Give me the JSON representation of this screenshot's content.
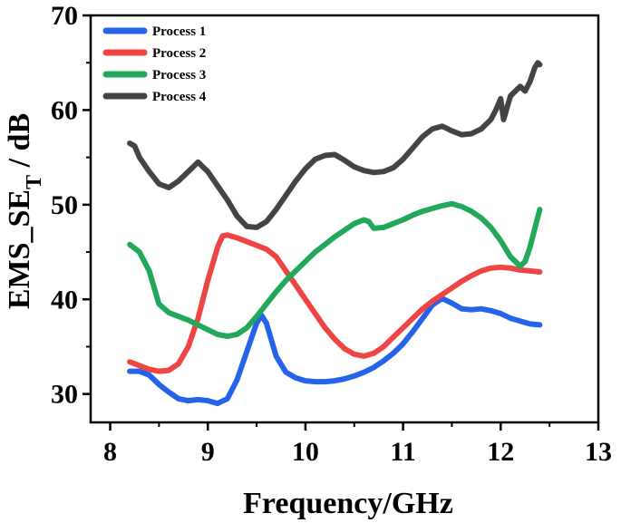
{
  "chart_data": {
    "type": "line",
    "title": "",
    "xlabel": "Frequency/GHz",
    "ylabel": {
      "main": "EMS_SE",
      "subscript": "T",
      "suffix": " / dB"
    },
    "xlim": [
      7.8,
      13
    ],
    "ylim": [
      27,
      70
    ],
    "x_ticks": [
      8,
      9,
      10,
      11,
      12,
      13
    ],
    "y_ticks": [
      30,
      40,
      50,
      60,
      70
    ],
    "grid": false,
    "legend_position": "top-left",
    "series": [
      {
        "name": "Process 1",
        "color": "#2563eb",
        "points": [
          [
            8.2,
            32.4
          ],
          [
            8.3,
            32.4
          ],
          [
            8.4,
            32.0
          ],
          [
            8.5,
            31.0
          ],
          [
            8.6,
            30.2
          ],
          [
            8.7,
            29.5
          ],
          [
            8.8,
            29.3
          ],
          [
            8.9,
            29.4
          ],
          [
            9.0,
            29.3
          ],
          [
            9.1,
            29.0
          ],
          [
            9.2,
            29.5
          ],
          [
            9.3,
            31.5
          ],
          [
            9.4,
            34.5
          ],
          [
            9.5,
            37.5
          ],
          [
            9.55,
            38.3
          ],
          [
            9.6,
            37.5
          ],
          [
            9.7,
            34.0
          ],
          [
            9.8,
            32.3
          ],
          [
            9.9,
            31.7
          ],
          [
            10.0,
            31.4
          ],
          [
            10.1,
            31.3
          ],
          [
            10.2,
            31.3
          ],
          [
            10.3,
            31.4
          ],
          [
            10.4,
            31.6
          ],
          [
            10.5,
            31.9
          ],
          [
            10.6,
            32.3
          ],
          [
            10.7,
            32.8
          ],
          [
            10.8,
            33.5
          ],
          [
            10.9,
            34.3
          ],
          [
            11.0,
            35.3
          ],
          [
            11.1,
            36.6
          ],
          [
            11.2,
            38.0
          ],
          [
            11.3,
            39.4
          ],
          [
            11.4,
            40.1
          ],
          [
            11.5,
            39.6
          ],
          [
            11.6,
            39.0
          ],
          [
            11.7,
            38.9
          ],
          [
            11.8,
            39.0
          ],
          [
            11.9,
            38.8
          ],
          [
            12.0,
            38.5
          ],
          [
            12.1,
            38.0
          ],
          [
            12.2,
            37.7
          ],
          [
            12.3,
            37.4
          ],
          [
            12.4,
            37.3
          ]
        ]
      },
      {
        "name": "Process 2",
        "color": "#ef4444",
        "points": [
          [
            8.2,
            33.4
          ],
          [
            8.3,
            33.0
          ],
          [
            8.4,
            32.6
          ],
          [
            8.5,
            32.4
          ],
          [
            8.6,
            32.5
          ],
          [
            8.7,
            33.2
          ],
          [
            8.8,
            35.0
          ],
          [
            8.9,
            38.0
          ],
          [
            9.0,
            42.0
          ],
          [
            9.1,
            45.5
          ],
          [
            9.15,
            46.7
          ],
          [
            9.2,
            46.8
          ],
          [
            9.3,
            46.5
          ],
          [
            9.4,
            46.1
          ],
          [
            9.5,
            45.7
          ],
          [
            9.6,
            45.3
          ],
          [
            9.7,
            44.5
          ],
          [
            9.8,
            43.0
          ],
          [
            9.9,
            41.5
          ],
          [
            10.0,
            40.0
          ],
          [
            10.1,
            38.5
          ],
          [
            10.2,
            37.0
          ],
          [
            10.3,
            35.8
          ],
          [
            10.4,
            34.8
          ],
          [
            10.5,
            34.2
          ],
          [
            10.6,
            34.0
          ],
          [
            10.7,
            34.3
          ],
          [
            10.8,
            35.0
          ],
          [
            10.9,
            36.0
          ],
          [
            11.0,
            37.0
          ],
          [
            11.1,
            38.0
          ],
          [
            11.2,
            39.0
          ],
          [
            11.3,
            39.8
          ],
          [
            11.4,
            40.5
          ],
          [
            11.5,
            41.2
          ],
          [
            11.6,
            41.9
          ],
          [
            11.7,
            42.5
          ],
          [
            11.8,
            43.0
          ],
          [
            11.9,
            43.3
          ],
          [
            12.0,
            43.4
          ],
          [
            12.1,
            43.3
          ],
          [
            12.2,
            43.1
          ],
          [
            12.3,
            43.0
          ],
          [
            12.4,
            42.9
          ]
        ]
      },
      {
        "name": "Process 3",
        "color": "#22a85a",
        "points": [
          [
            8.2,
            45.8
          ],
          [
            8.3,
            45.0
          ],
          [
            8.4,
            43.0
          ],
          [
            8.5,
            39.5
          ],
          [
            8.6,
            38.6
          ],
          [
            8.7,
            38.2
          ],
          [
            8.8,
            37.8
          ],
          [
            8.9,
            37.3
          ],
          [
            9.0,
            36.8
          ],
          [
            9.1,
            36.3
          ],
          [
            9.2,
            36.1
          ],
          [
            9.3,
            36.3
          ],
          [
            9.4,
            37.0
          ],
          [
            9.5,
            38.2
          ],
          [
            9.6,
            39.5
          ],
          [
            9.7,
            40.8
          ],
          [
            9.8,
            42.0
          ],
          [
            9.9,
            43.0
          ],
          [
            10.0,
            44.0
          ],
          [
            10.1,
            45.0
          ],
          [
            10.2,
            45.8
          ],
          [
            10.3,
            46.6
          ],
          [
            10.4,
            47.3
          ],
          [
            10.5,
            48.0
          ],
          [
            10.6,
            48.4
          ],
          [
            10.65,
            48.2
          ],
          [
            10.7,
            47.5
          ],
          [
            10.8,
            47.6
          ],
          [
            10.9,
            48.0
          ],
          [
            11.0,
            48.4
          ],
          [
            11.1,
            48.9
          ],
          [
            11.2,
            49.3
          ],
          [
            11.3,
            49.6
          ],
          [
            11.4,
            49.9
          ],
          [
            11.5,
            50.1
          ],
          [
            11.6,
            49.8
          ],
          [
            11.7,
            49.3
          ],
          [
            11.8,
            48.6
          ],
          [
            11.9,
            47.6
          ],
          [
            12.0,
            46.2
          ],
          [
            12.1,
            44.5
          ],
          [
            12.2,
            43.5
          ],
          [
            12.25,
            44.0
          ],
          [
            12.3,
            45.5
          ],
          [
            12.35,
            47.5
          ],
          [
            12.4,
            49.5
          ]
        ]
      },
      {
        "name": "Process 4",
        "color": "#444444",
        "points": [
          [
            8.2,
            56.5
          ],
          [
            8.25,
            56.2
          ],
          [
            8.3,
            55.0
          ],
          [
            8.4,
            53.5
          ],
          [
            8.5,
            52.2
          ],
          [
            8.6,
            51.8
          ],
          [
            8.7,
            52.5
          ],
          [
            8.8,
            53.5
          ],
          [
            8.9,
            54.5
          ],
          [
            8.95,
            54.0
          ],
          [
            9.0,
            53.5
          ],
          [
            9.1,
            52.0
          ],
          [
            9.2,
            50.5
          ],
          [
            9.3,
            48.8
          ],
          [
            9.4,
            47.7
          ],
          [
            9.5,
            47.6
          ],
          [
            9.6,
            48.2
          ],
          [
            9.7,
            49.5
          ],
          [
            9.8,
            51.0
          ],
          [
            9.9,
            52.5
          ],
          [
            10.0,
            53.8
          ],
          [
            10.1,
            54.8
          ],
          [
            10.2,
            55.2
          ],
          [
            10.3,
            55.3
          ],
          [
            10.4,
            54.7
          ],
          [
            10.5,
            54.0
          ],
          [
            10.6,
            53.6
          ],
          [
            10.7,
            53.4
          ],
          [
            10.8,
            53.5
          ],
          [
            10.9,
            53.9
          ],
          [
            11.0,
            54.8
          ],
          [
            11.1,
            56.0
          ],
          [
            11.2,
            57.2
          ],
          [
            11.3,
            58.0
          ],
          [
            11.4,
            58.3
          ],
          [
            11.5,
            57.8
          ],
          [
            11.6,
            57.4
          ],
          [
            11.7,
            57.5
          ],
          [
            11.8,
            58.0
          ],
          [
            11.9,
            59.0
          ],
          [
            11.95,
            60.0
          ],
          [
            12.0,
            61.2
          ],
          [
            12.03,
            59.0
          ],
          [
            12.1,
            61.5
          ],
          [
            12.2,
            62.5
          ],
          [
            12.25,
            62.0
          ],
          [
            12.3,
            63.0
          ],
          [
            12.35,
            64.5
          ],
          [
            12.38,
            65.0
          ],
          [
            12.4,
            64.8
          ]
        ]
      }
    ]
  }
}
